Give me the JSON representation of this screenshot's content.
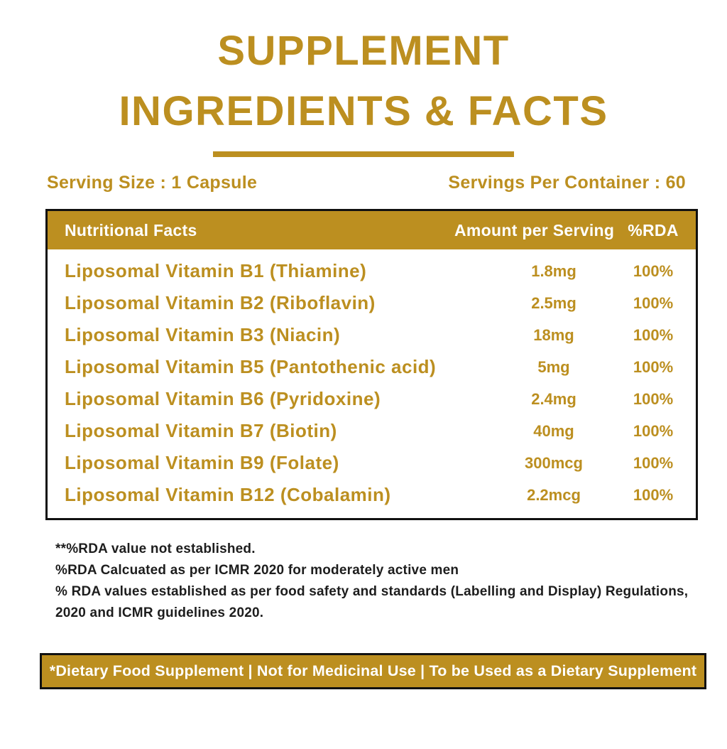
{
  "title": {
    "line1": "SUPPLEMENT",
    "line2": "INGREDIENTS & FACTS"
  },
  "serving": {
    "size_label": "Serving Size : 1 Capsule",
    "per_container_label": "Servings Per Container : 60"
  },
  "table": {
    "headers": [
      "Nutritional Facts",
      "Amount per Serving",
      "%RDA"
    ],
    "rows": [
      {
        "name": "Liposomal Vitamin B1 (Thiamine)",
        "amount": "1.8mg",
        "rda": "100%"
      },
      {
        "name": "Liposomal Vitamin B2 (Riboflavin)",
        "amount": "2.5mg",
        "rda": "100%"
      },
      {
        "name": "Liposomal Vitamin B3 (Niacin)",
        "amount": "18mg",
        "rda": "100%"
      },
      {
        "name": "Liposomal Vitamin B5 (Pantothenic acid)",
        "amount": "5mg",
        "rda": "100%"
      },
      {
        "name": "Liposomal Vitamin B6 (Pyridoxine)",
        "amount": "2.4mg",
        "rda": "100%"
      },
      {
        "name": "Liposomal Vitamin B7 (Biotin)",
        "amount": "40mg",
        "rda": "100%"
      },
      {
        "name": "Liposomal Vitamin B9 (Folate)",
        "amount": "300mcg",
        "rda": "100%"
      },
      {
        "name": "Liposomal Vitamin B12 (Cobalamin)",
        "amount": "2.2mcg",
        "rda": "100%"
      }
    ]
  },
  "footnotes": [
    "**%RDA value not established.",
    "%RDA Calcuated as per ICMR 2020 for moderately active men",
    "% RDA values established as per food safety and standards (Labelling and Display) Regulations, 2020 and ICMR guidelines 2020."
  ],
  "banner": {
    "text": "*Dietary Food Supplement | Not for Medicinal Use | To be Used as a Dietary Supplement"
  },
  "colors": {
    "gold": "#BC8F20",
    "text_dark": "#1D1D1D",
    "white": "#FFFFFF",
    "border_black": "#111111"
  }
}
